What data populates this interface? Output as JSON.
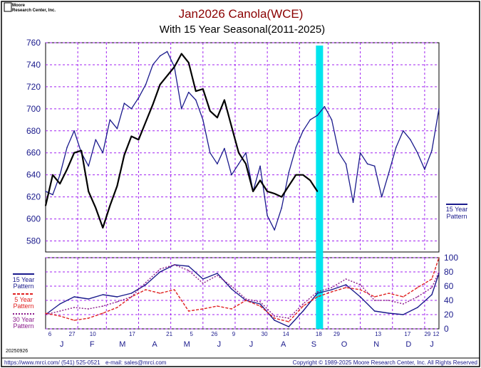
{
  "header": {
    "brand_line1": "Moore",
    "brand_line2": "Research Center, Inc.",
    "title": "Jan2026 Canola(WCE)",
    "subtitle": "With 15 Year Seasonal(2011-2025)"
  },
  "footer": {
    "date_code": "20250926",
    "website": "https://www.mrci.com/",
    "phone": "(541) 525-0521",
    "email": "e-mail: sales@mrci.com",
    "copyright": "Copyright © 1989-2025 Moore Research Center, Inc. All Rights Reserved"
  },
  "colors": {
    "price_line": "#000000",
    "pattern_15": "#1a1a8c",
    "pattern_5": "#e02020",
    "pattern_30": "#8b1a8b",
    "highlight": "#00e5ee",
    "grid": "#a020f0",
    "axis_text": "#1a1a8c",
    "title": "#8b0000"
  },
  "chart_data": [
    {
      "type": "line",
      "panel": "price",
      "y_ticks": [
        "580",
        "600",
        "620",
        "640",
        "660",
        "680",
        "700",
        "720",
        "740",
        "760"
      ],
      "ylim": [
        570,
        760
      ],
      "x_months": [
        "J",
        "F",
        "M",
        "A",
        "M",
        "J",
        "J",
        "A",
        "S",
        "O",
        "N",
        "D",
        "J"
      ],
      "x_day_ticks": [
        "6",
        "27",
        "10",
        "17",
        "21",
        "5",
        "26",
        "9",
        "30",
        "14",
        "18",
        "29",
        "13",
        "17",
        "29",
        "12"
      ],
      "right_label_line1": "15 Year",
      "right_label_line2": "Pattern",
      "highlight_date": "Sep 29",
      "series": [
        {
          "name": "Jan2026 Canola(WCE)",
          "x_week": [
            0,
            1,
            2,
            3,
            4,
            5,
            6,
            7,
            8,
            9,
            10,
            11,
            12,
            13,
            14,
            15,
            16,
            17,
            18,
            19,
            20,
            21,
            22,
            23,
            24,
            25,
            26,
            27,
            28,
            29,
            30,
            31,
            32,
            33,
            34,
            35,
            36,
            37,
            38
          ],
          "values": [
            612,
            640,
            632,
            645,
            660,
            662,
            625,
            610,
            592,
            612,
            630,
            658,
            675,
            672,
            688,
            704,
            722,
            730,
            738,
            750,
            742,
            716,
            718,
            698,
            692,
            708,
            684,
            660,
            650,
            625,
            635,
            625,
            623,
            620,
            630,
            640,
            640,
            635,
            625
          ]
        },
        {
          "name": "15 Year Pattern",
          "x_week": [
            0,
            1,
            2,
            3,
            4,
            5,
            6,
            7,
            8,
            9,
            10,
            11,
            12,
            13,
            14,
            15,
            16,
            17,
            18,
            19,
            20,
            21,
            22,
            23,
            24,
            25,
            26,
            27,
            28,
            29,
            30,
            31,
            32,
            33,
            34,
            35,
            36,
            37,
            38,
            39,
            40,
            41,
            42,
            43,
            44,
            45,
            46,
            47,
            48,
            49,
            50,
            51,
            52,
            53,
            54,
            55
          ],
          "values": [
            625,
            622,
            640,
            665,
            680,
            660,
            648,
            672,
            660,
            690,
            682,
            705,
            700,
            710,
            722,
            740,
            748,
            752,
            738,
            700,
            715,
            708,
            690,
            660,
            650,
            664,
            640,
            650,
            660,
            625,
            648,
            603,
            590,
            610,
            642,
            665,
            680,
            690,
            694,
            702,
            690,
            660,
            650,
            615,
            660,
            650,
            648,
            620,
            642,
            665,
            680,
            672,
            660,
            645,
            662,
            700
          ]
        }
      ]
    },
    {
      "type": "line",
      "panel": "seasonal",
      "y_ticks": [
        "0",
        "20",
        "40",
        "60",
        "80",
        "100"
      ],
      "ylim": [
        0,
        100
      ],
      "legend": [
        {
          "line1": "15 Year",
          "line2": "Pattern"
        },
        {
          "line1": "5 Year",
          "line2": "Pattern"
        },
        {
          "line1": "30 Year",
          "line2": "Pattern"
        }
      ],
      "series": [
        {
          "name": "15 Year Pattern",
          "x_week": [
            0,
            2,
            4,
            6,
            8,
            10,
            12,
            14,
            16,
            18,
            20,
            22,
            24,
            26,
            28,
            30,
            32,
            34,
            36,
            38,
            40,
            42,
            44,
            46,
            48,
            50,
            52,
            54,
            55
          ],
          "values": [
            20,
            35,
            45,
            42,
            48,
            45,
            50,
            62,
            80,
            90,
            88,
            70,
            78,
            56,
            40,
            35,
            12,
            3,
            25,
            50,
            55,
            62,
            45,
            25,
            22,
            20,
            30,
            48,
            78
          ]
        },
        {
          "name": "5 Year Pattern",
          "x_week": [
            0,
            2,
            4,
            6,
            8,
            10,
            12,
            14,
            16,
            18,
            20,
            22,
            24,
            26,
            28,
            30,
            32,
            34,
            36,
            38,
            40,
            42,
            44,
            46,
            48,
            50,
            52,
            54,
            55
          ],
          "values": [
            22,
            18,
            12,
            15,
            22,
            30,
            45,
            55,
            50,
            55,
            25,
            28,
            32,
            28,
            40,
            32,
            15,
            10,
            32,
            45,
            52,
            58,
            55,
            45,
            50,
            45,
            58,
            70,
            100
          ]
        },
        {
          "name": "30 Year Pattern",
          "x_week": [
            0,
            2,
            4,
            6,
            8,
            10,
            12,
            14,
            16,
            18,
            20,
            22,
            24,
            26,
            28,
            30,
            32,
            34,
            36,
            38,
            40,
            42,
            44,
            46,
            48,
            50,
            52,
            54,
            55
          ],
          "values": [
            20,
            25,
            30,
            28,
            32,
            38,
            45,
            65,
            84,
            90,
            82,
            64,
            75,
            60,
            42,
            38,
            18,
            15,
            35,
            52,
            58,
            70,
            62,
            40,
            40,
            35,
            45,
            58,
            80
          ]
        }
      ]
    }
  ]
}
